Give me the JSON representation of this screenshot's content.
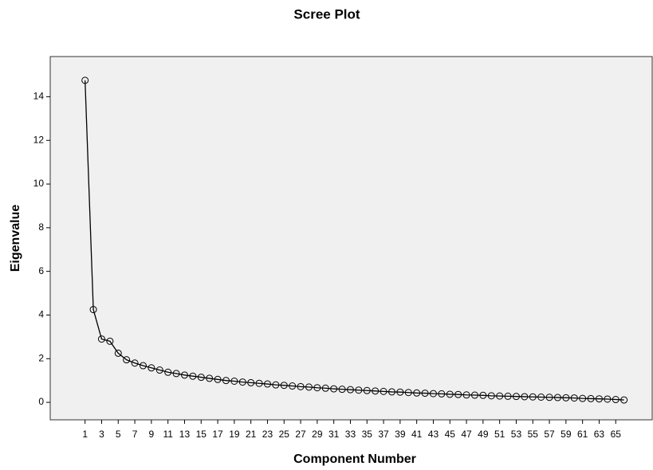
{
  "chart_data": {
    "type": "line",
    "title": "Scree Plot",
    "x_label": "Component Number",
    "y_label": "Eigenvalue",
    "x": [
      1,
      2,
      3,
      4,
      5,
      6,
      7,
      8,
      9,
      10,
      11,
      12,
      13,
      14,
      15,
      16,
      17,
      18,
      19,
      20,
      21,
      22,
      23,
      24,
      25,
      26,
      27,
      28,
      29,
      30,
      31,
      32,
      33,
      34,
      35,
      36,
      37,
      38,
      39,
      40,
      41,
      42,
      43,
      44,
      45,
      46,
      47,
      48,
      49,
      50,
      51,
      52,
      53,
      54,
      55,
      56,
      57,
      58,
      59,
      60,
      61,
      62,
      63,
      64,
      65,
      66
    ],
    "series": [
      {
        "name": "Eigenvalue",
        "color": "#000000",
        "values": [
          14.75,
          4.25,
          2.9,
          2.8,
          2.25,
          1.95,
          1.8,
          1.68,
          1.58,
          1.48,
          1.38,
          1.32,
          1.25,
          1.2,
          1.15,
          1.1,
          1.05,
          1.0,
          0.97,
          0.93,
          0.9,
          0.87,
          0.84,
          0.8,
          0.78,
          0.75,
          0.72,
          0.7,
          0.67,
          0.65,
          0.62,
          0.6,
          0.58,
          0.56,
          0.54,
          0.52,
          0.5,
          0.48,
          0.47,
          0.45,
          0.43,
          0.42,
          0.4,
          0.39,
          0.37,
          0.36,
          0.34,
          0.33,
          0.32,
          0.3,
          0.29,
          0.28,
          0.27,
          0.26,
          0.25,
          0.24,
          0.23,
          0.22,
          0.21,
          0.2,
          0.18,
          0.17,
          0.16,
          0.15,
          0.13,
          0.11
        ]
      }
    ],
    "xlim": [
      -3.2,
      69.4
    ],
    "ylim": [
      -0.8,
      15.84
    ],
    "xticks": [
      1,
      3,
      5,
      7,
      9,
      11,
      13,
      15,
      17,
      19,
      21,
      23,
      25,
      27,
      29,
      31,
      33,
      35,
      37,
      39,
      41,
      43,
      45,
      47,
      49,
      51,
      53,
      55,
      57,
      59,
      61,
      63,
      65
    ],
    "yticks": [
      0,
      2,
      4,
      6,
      8,
      10,
      12,
      14
    ],
    "plot_background": "#f0f0f0"
  }
}
